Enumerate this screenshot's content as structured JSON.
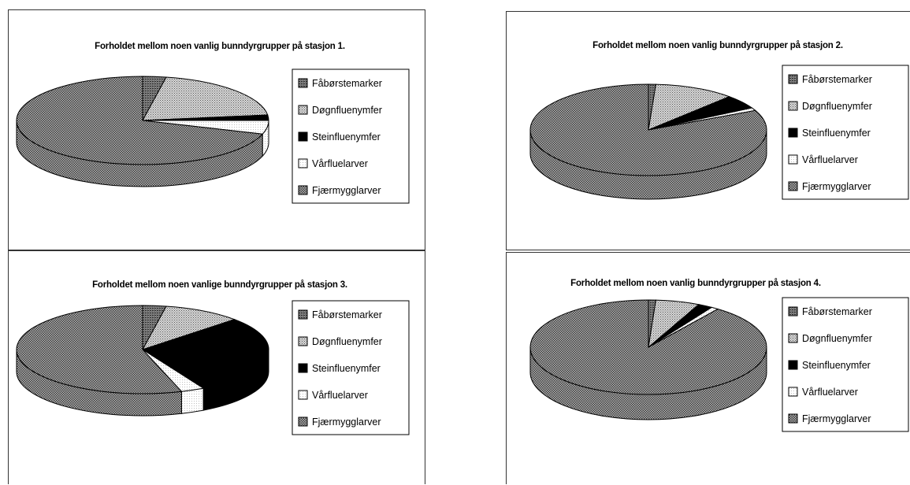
{
  "patterns": {
    "Fåbørstemarker": {
      "fg": "#2b2b2b",
      "bg": "#8a8a8a",
      "kind": "dense"
    },
    "Døgnfluenymfer": {
      "fg": "#555555",
      "bg": "#d9d9d9",
      "kind": "light"
    },
    "Steinfluenymfer": {
      "fg": "#000000",
      "bg": "#000000",
      "kind": "solid"
    },
    "Vårfluelarver": {
      "fg": "#9a9a9a",
      "bg": "#ffffff",
      "kind": "dots"
    },
    "Fjærmygglarver": {
      "fg": "#3a3a3a",
      "bg": "#b5b5b5",
      "kind": "check"
    }
  },
  "chart_data": [
    {
      "type": "pie",
      "title": "Forholdet mellom noen vanlig bunndyrgrupper på stasjon 1.",
      "categories": [
        "Fåbørstemarker",
        "Døgnfluenymfer",
        "Steinfluenymfer",
        "Vårfluelarver",
        "Fjærmygglarver"
      ],
      "values": [
        3,
        20,
        2,
        5,
        70
      ],
      "legend": "right"
    },
    {
      "type": "pie",
      "title": "Forholdet mellom noen vanlig bunndyrgrupper på stasjon 2.",
      "categories": [
        "Fåbørstemarker",
        "Døgnfluenymfer",
        "Steinfluenymfer",
        "Vårfluelarver",
        "Fjærmygglarver"
      ],
      "values": [
        1,
        11,
        5,
        1,
        82
      ],
      "legend": "right"
    },
    {
      "type": "pie",
      "title": "Forholdet mellom noen vanlige bunndyrgrupper på stasjon 3.",
      "categories": [
        "Fåbørstemarker",
        "Døgnfluenymfer",
        "Steinfluenymfer",
        "Vårfluelarver",
        "Fjærmygglarver"
      ],
      "values": [
        3,
        10,
        29,
        3,
        55
      ],
      "legend": "right"
    },
    {
      "type": "pie",
      "title": "Forholdet mellom noen vanlig bunndyrgrupper på stasjon 4.",
      "categories": [
        "Fåbørstemarker",
        "Døgnfluenymfer",
        "Steinfluenymfer",
        "Vårfluelarver",
        "Fjærmygglarver"
      ],
      "values": [
        1,
        6,
        2,
        1,
        90
      ],
      "legend": "right"
    }
  ]
}
